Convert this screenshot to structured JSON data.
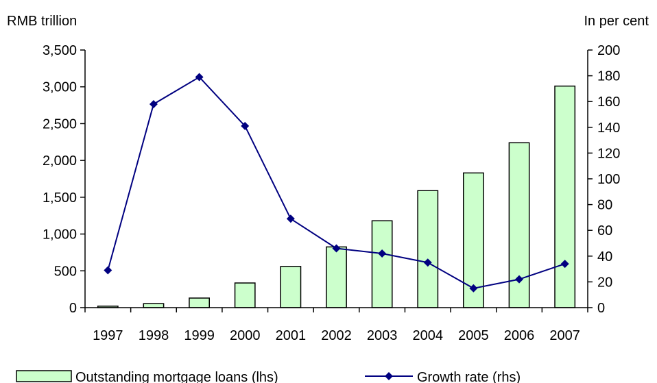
{
  "chart_data": {
    "type": "bar",
    "categories": [
      "1997",
      "1998",
      "1999",
      "2000",
      "2001",
      "2002",
      "2003",
      "2004",
      "2005",
      "2006",
      "2007"
    ],
    "series": [
      {
        "name": "Outstanding mortgage loans (lhs)",
        "type": "bar",
        "axis": "left",
        "values": [
          20,
          55,
          130,
          335,
          560,
          825,
          1180,
          1590,
          1830,
          2240,
          3010
        ]
      },
      {
        "name": "Growth rate (rhs)",
        "type": "line",
        "axis": "right",
        "values": [
          29,
          158,
          179,
          141,
          69,
          46,
          42,
          35,
          15,
          22,
          34
        ]
      }
    ],
    "ylabel": "RMB trillion",
    "y2label": "In per cent",
    "ylim": [
      0,
      3500
    ],
    "y2lim": [
      0,
      200
    ],
    "yticks": [
      "0",
      "500",
      "1,000",
      "1,500",
      "2,000",
      "2,500",
      "3,000",
      "3,500"
    ],
    "y2ticks": [
      "0",
      "20",
      "40",
      "60",
      "80",
      "100",
      "120",
      "140",
      "160",
      "180",
      "200"
    ],
    "grid": false,
    "legend_position": "bottom",
    "colors": {
      "bar_fill": "#ccffcc",
      "bar_stroke": "#000000",
      "line": "#000080"
    }
  }
}
